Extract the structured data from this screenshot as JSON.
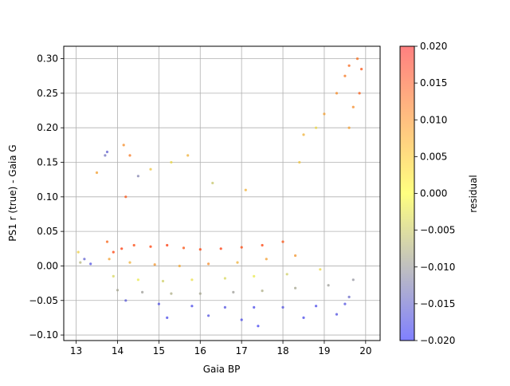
{
  "chart_data": {
    "type": "scatter",
    "title": "",
    "xlabel": "Gaia BP",
    "ylabel": "PS1 r (true) - Gaia G",
    "xlim": [
      12.7,
      20.35
    ],
    "ylim": [
      -0.108,
      0.318
    ],
    "xticks": [
      13,
      14,
      15,
      16,
      17,
      18,
      19,
      20
    ],
    "xtick_labels": [
      "13",
      "14",
      "15",
      "16",
      "17",
      "18",
      "19",
      "20"
    ],
    "yticks": [
      -0.1,
      -0.05,
      0.0,
      0.05,
      0.1,
      0.15,
      0.2,
      0.25,
      0.3
    ],
    "ytick_labels": [
      "−0.10",
      "−0.05",
      "0.00",
      "0.05",
      "0.10",
      "0.15",
      "0.20",
      "0.25",
      "0.30"
    ],
    "grid": true,
    "colorbar": {
      "label": "residual",
      "range": [
        -0.02,
        0.02
      ],
      "ticks": [
        -0.02,
        -0.015,
        -0.01,
        -0.005,
        0.0,
        0.005,
        0.01,
        0.015,
        0.02
      ],
      "tick_labels": [
        "−0.020",
        "−0.015",
        "−0.010",
        "−0.005",
        "0.000",
        "0.005",
        "0.010",
        "0.015",
        "0.020"
      ],
      "colors": [
        "#8080ff",
        "#ffff80",
        "#ff8080"
      ]
    },
    "point_color_range": [
      "#3c3cf0",
      "#e8e84a",
      "#ff2a00"
    ],
    "points": [
      [
        13.05,
        0.02,
        0.003
      ],
      [
        13.1,
        0.005,
        -0.006
      ],
      [
        13.2,
        0.01,
        -0.016
      ],
      [
        13.35,
        0.003,
        -0.018
      ],
      [
        13.5,
        0.135,
        0.008
      ],
      [
        13.7,
        0.16,
        -0.014
      ],
      [
        13.75,
        0.165,
        -0.016
      ],
      [
        14.15,
        0.175,
        0.01
      ],
      [
        14.3,
        0.16,
        0.012
      ],
      [
        14.5,
        0.13,
        -0.012
      ],
      [
        14.8,
        0.14,
        0.004
      ],
      [
        15.3,
        0.15,
        0.002
      ],
      [
        15.7,
        0.16,
        0.006
      ],
      [
        14.2,
        0.1,
        0.016
      ],
      [
        16.3,
        0.12,
        -0.004
      ],
      [
        17.1,
        0.11,
        0.006
      ],
      [
        13.75,
        0.035,
        0.014
      ],
      [
        13.9,
        0.02,
        0.018
      ],
      [
        14.1,
        0.025,
        0.019
      ],
      [
        14.4,
        0.03,
        0.017
      ],
      [
        14.8,
        0.028,
        0.018
      ],
      [
        15.2,
        0.03,
        0.019
      ],
      [
        15.6,
        0.026,
        0.016
      ],
      [
        16.0,
        0.024,
        0.018
      ],
      [
        16.5,
        0.025,
        0.019
      ],
      [
        17.0,
        0.027,
        0.017
      ],
      [
        17.5,
        0.03,
        0.018
      ],
      [
        18.0,
        0.035,
        0.016
      ],
      [
        13.8,
        0.01,
        0.008
      ],
      [
        14.3,
        0.005,
        0.006
      ],
      [
        14.9,
        0.002,
        0.009
      ],
      [
        15.5,
        0.0,
        0.007
      ],
      [
        16.2,
        0.003,
        0.01
      ],
      [
        16.9,
        0.005,
        0.006
      ],
      [
        17.6,
        0.01,
        0.008
      ],
      [
        18.3,
        0.015,
        0.009
      ],
      [
        13.9,
        -0.015,
        -0.002
      ],
      [
        14.5,
        -0.02,
        0.0
      ],
      [
        15.1,
        -0.022,
        -0.003
      ],
      [
        15.8,
        -0.02,
        0.001
      ],
      [
        16.6,
        -0.018,
        -0.002
      ],
      [
        17.3,
        -0.015,
        0.0
      ],
      [
        18.1,
        -0.012,
        -0.003
      ],
      [
        18.9,
        -0.005,
        0.002
      ],
      [
        14.0,
        -0.035,
        -0.008
      ],
      [
        14.6,
        -0.038,
        -0.009
      ],
      [
        15.3,
        -0.04,
        -0.007
      ],
      [
        16.0,
        -0.04,
        -0.008
      ],
      [
        16.8,
        -0.038,
        -0.009
      ],
      [
        17.5,
        -0.036,
        -0.007
      ],
      [
        18.3,
        -0.032,
        -0.008
      ],
      [
        19.1,
        -0.028,
        -0.009
      ],
      [
        14.2,
        -0.05,
        -0.017
      ],
      [
        15.0,
        -0.055,
        -0.018
      ],
      [
        15.8,
        -0.058,
        -0.019
      ],
      [
        16.6,
        -0.06,
        -0.018
      ],
      [
        17.3,
        -0.06,
        -0.019
      ],
      [
        18.0,
        -0.06,
        -0.018
      ],
      [
        18.8,
        -0.058,
        -0.019
      ],
      [
        19.5,
        -0.055,
        -0.018
      ],
      [
        15.2,
        -0.075,
        -0.019
      ],
      [
        16.2,
        -0.072,
        -0.018
      ],
      [
        17.0,
        -0.078,
        -0.019
      ],
      [
        17.4,
        -0.087,
        -0.02
      ],
      [
        18.5,
        -0.075,
        -0.019
      ],
      [
        19.3,
        -0.07,
        -0.018
      ],
      [
        19.6,
        -0.045,
        -0.015
      ],
      [
        19.7,
        -0.02,
        -0.01
      ],
      [
        18.4,
        0.15,
        0.004
      ],
      [
        18.5,
        0.19,
        0.006
      ],
      [
        18.8,
        0.2,
        0.002
      ],
      [
        19.0,
        0.22,
        0.008
      ],
      [
        19.3,
        0.25,
        0.01
      ],
      [
        19.5,
        0.275,
        0.012
      ],
      [
        19.6,
        0.29,
        0.014
      ],
      [
        19.8,
        0.3,
        0.013
      ],
      [
        19.9,
        0.285,
        0.016
      ],
      [
        19.85,
        0.25,
        0.015
      ],
      [
        19.7,
        0.23,
        0.01
      ],
      [
        19.6,
        0.2,
        0.008
      ]
    ]
  }
}
